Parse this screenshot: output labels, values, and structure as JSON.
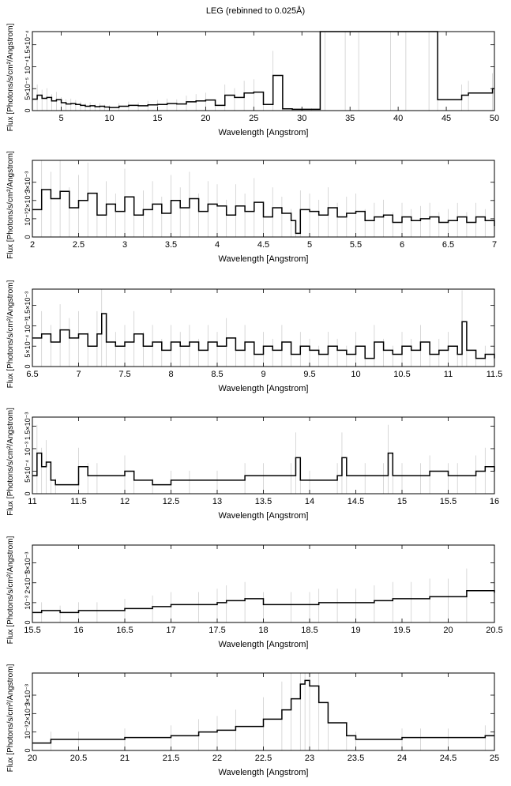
{
  "figure": {
    "title": "LEG (rebinned to 0.025Å)"
  },
  "chart_data": [
    {
      "type": "line",
      "title": "",
      "xlabel": "Wavelength [Angstrom]",
      "ylabel": "Flux [Photons/s/cm²/Angstrom]",
      "xlim": [
        2,
        50
      ],
      "ylim": [
        0,
        0.00018
      ],
      "xticks": [
        5,
        10,
        15,
        20,
        25,
        30,
        35,
        40,
        45,
        50
      ],
      "xtick_labels": [
        "5",
        "10",
        "15",
        "20",
        "25",
        "30",
        "35",
        "40",
        "45",
        "50"
      ],
      "yticks": [
        0,
        5e-05,
        0.0001,
        0.00015
      ],
      "ytick_labels": [
        "0",
        "5×10⁻⁵",
        "10⁻⁴",
        "1.5×10⁻⁴"
      ],
      "series": [
        {
          "x": [
            2,
            2.5,
            3,
            3.5,
            4,
            4.5,
            5,
            5.5,
            6,
            6.5,
            7,
            7.5,
            8,
            8.5,
            9,
            9.5,
            10,
            11,
            12,
            13,
            14,
            15,
            16,
            17,
            18,
            19,
            20,
            21,
            22,
            23,
            24,
            25,
            26,
            27,
            28,
            29,
            30,
            31,
            31.9,
            32.4,
            34.5,
            35.9,
            39.2,
            40.8,
            43.2,
            44.1,
            46.6,
            47.3,
            49.8
          ],
          "y": [
            2.6e-05,
            3.5e-05,
            2.8e-05,
            3e-05,
            2.2e-05,
            2.5e-05,
            1.8e-05,
            1.5e-05,
            1.6e-05,
            1.4e-05,
            1.2e-05,
            1e-05,
            1.1e-05,
            9e-06,
            1e-05,
            8e-06,
            7e-06,
            1e-05,
            1.2e-05,
            1.1e-05,
            1.3e-05,
            1.4e-05,
            1.6e-05,
            1.5e-05,
            2e-05,
            2.2e-05,
            2.4e-05,
            1.2e-05,
            3.5e-05,
            3e-05,
            4e-05,
            4.2e-05,
            1.4e-05,
            8e-05,
            4e-06,
            3e-06,
            3e-06,
            3e-06,
            0.00018,
            0.00018,
            0.00018,
            0.00018,
            0.00018,
            0.00018,
            0.00018,
            2.5e-05,
            3.5e-05,
            4e-05,
            5e-05
          ]
        }
      ]
    },
    {
      "type": "line",
      "title": "",
      "xlabel": "Wavelength [Angstrom]",
      "ylabel": "Flux [Photons/s/cm²/Angstrom]",
      "xlim": [
        2,
        7
      ],
      "ylim": [
        0,
        0.0042
      ],
      "xticks": [
        2,
        2.5,
        3,
        3.5,
        4,
        4.5,
        5,
        5.5,
        6,
        6.5,
        7
      ],
      "xtick_labels": [
        "2",
        "2.5",
        "3",
        "3.5",
        "4",
        "4.5",
        "5",
        "5.5",
        "6",
        "6.5",
        "7"
      ],
      "yticks": [
        0,
        0.001,
        0.002,
        0.003
      ],
      "ytick_labels": [
        "0",
        "10⁻³",
        "2×10⁻³",
        "3×10⁻³"
      ],
      "series": [
        {
          "x": [
            2,
            2.1,
            2.2,
            2.3,
            2.4,
            2.5,
            2.6,
            2.7,
            2.8,
            2.9,
            3,
            3.1,
            3.2,
            3.3,
            3.4,
            3.5,
            3.6,
            3.7,
            3.8,
            3.9,
            4,
            4.1,
            4.2,
            4.3,
            4.4,
            4.5,
            4.6,
            4.7,
            4.8,
            4.85,
            4.9,
            5,
            5.1,
            5.2,
            5.3,
            5.4,
            5.5,
            5.6,
            5.7,
            5.8,
            5.9,
            6,
            6.1,
            6.2,
            6.3,
            6.4,
            6.5,
            6.6,
            6.7,
            6.8,
            6.9,
            7
          ],
          "y": [
            0.0015,
            0.0026,
            0.0021,
            0.0025,
            0.0016,
            0.002,
            0.0024,
            0.0012,
            0.0018,
            0.0014,
            0.0022,
            0.0012,
            0.0015,
            0.0018,
            0.0013,
            0.002,
            0.0016,
            0.0021,
            0.0014,
            0.0018,
            0.0017,
            0.0012,
            0.0017,
            0.0014,
            0.0019,
            0.0011,
            0.0016,
            0.0013,
            0.0009,
            0.0002,
            0.0015,
            0.0014,
            0.0012,
            0.0016,
            0.0011,
            0.0013,
            0.0014,
            0.0009,
            0.0011,
            0.0012,
            0.0008,
            0.0011,
            0.0009,
            0.001,
            0.0011,
            0.0008,
            0.0009,
            0.0011,
            0.0008,
            0.0011,
            0.0009,
            0.0006
          ]
        }
      ]
    },
    {
      "type": "line",
      "title": "",
      "xlabel": "Wavelength [Angstrom]",
      "ylabel": "Flux [Photons/s/cm²/Angstrom]",
      "xlim": [
        6.5,
        11.5
      ],
      "ylim": [
        0,
        0.0019
      ],
      "xticks": [
        6.5,
        7,
        7.5,
        8,
        8.5,
        9,
        9.5,
        10,
        10.5,
        11,
        11.5
      ],
      "xtick_labels": [
        "6.5",
        "7",
        "7.5",
        "8",
        "8.5",
        "9",
        "9.5",
        "10",
        "10.5",
        "11",
        "11.5"
      ],
      "yticks": [
        0,
        0.0005,
        0.001,
        0.0015
      ],
      "ytick_labels": [
        "0",
        "5×10⁻⁴",
        "10⁻³",
        "1.5×10⁻³"
      ],
      "series": [
        {
          "x": [
            6.5,
            6.6,
            6.7,
            6.8,
            6.9,
            7,
            7.1,
            7.2,
            7.25,
            7.3,
            7.4,
            7.5,
            7.6,
            7.7,
            7.8,
            7.9,
            8,
            8.1,
            8.2,
            8.3,
            8.4,
            8.5,
            8.6,
            8.7,
            8.8,
            8.9,
            9,
            9.1,
            9.2,
            9.3,
            9.4,
            9.5,
            9.6,
            9.7,
            9.8,
            9.9,
            10,
            10.1,
            10.2,
            10.3,
            10.4,
            10.5,
            10.6,
            10.7,
            10.8,
            10.9,
            11,
            11.1,
            11.15,
            11.2,
            11.3,
            11.4,
            11.5
          ],
          "y": [
            0.0007,
            0.0008,
            0.0006,
            0.0009,
            0.0007,
            0.0008,
            0.0005,
            0.0008,
            0.0013,
            0.0006,
            0.0005,
            0.0006,
            0.0008,
            0.0005,
            0.0006,
            0.0004,
            0.0006,
            0.0005,
            0.0006,
            0.0004,
            0.0006,
            0.0005,
            0.0007,
            0.0004,
            0.0006,
            0.0003,
            0.0005,
            0.0004,
            0.0006,
            0.0003,
            0.0005,
            0.0004,
            0.0003,
            0.0005,
            0.0004,
            0.0003,
            0.0005,
            0.0002,
            0.0006,
            0.0004,
            0.0003,
            0.0005,
            0.0004,
            0.0006,
            0.0003,
            0.0004,
            0.0005,
            0.0003,
            0.0011,
            0.0004,
            0.0002,
            0.0003,
            0.0002
          ]
        }
      ]
    },
    {
      "type": "line",
      "title": "",
      "xlabel": "Wavelength [Angstrom]",
      "ylabel": "Flux [Photons/s/cm²/Angstrom]",
      "xlim": [
        11,
        16
      ],
      "ylim": [
        0,
        0.0017
      ],
      "xticks": [
        11,
        11.5,
        12,
        12.5,
        13,
        13.5,
        14,
        14.5,
        15,
        15.5,
        16
      ],
      "xtick_labels": [
        "11",
        "11.5",
        "12",
        "12.5",
        "13",
        "13.5",
        "14",
        "14.5",
        "15",
        "15.5",
        "16"
      ],
      "yticks": [
        0,
        0.0005,
        0.001,
        0.0015
      ],
      "ytick_labels": [
        "0",
        "5×10⁻⁴",
        "10⁻³",
        "1.5×10⁻³"
      ],
      "series": [
        {
          "x": [
            11,
            11.05,
            11.1,
            11.15,
            11.2,
            11.25,
            11.5,
            11.6,
            11.7,
            12,
            12.1,
            12.3,
            12.5,
            12.7,
            13,
            13.3,
            13.5,
            13.8,
            13.85,
            13.9,
            14,
            14.3,
            14.35,
            14.4,
            14.6,
            14.8,
            14.85,
            14.9,
            15,
            15.2,
            15.3,
            15.5,
            15.6,
            15.8,
            15.9,
            16
          ],
          "y": [
            0.0004,
            0.0009,
            0.0006,
            0.0007,
            0.0003,
            0.0002,
            0.0006,
            0.0004,
            0.0004,
            0.0005,
            0.0003,
            0.0002,
            0.0003,
            0.0003,
            0.0003,
            0.0004,
            0.0004,
            0.0004,
            0.0008,
            0.0003,
            0.0003,
            0.0004,
            0.0008,
            0.0004,
            0.0004,
            0.0004,
            0.0009,
            0.0004,
            0.0004,
            0.0004,
            0.0005,
            0.0004,
            0.0004,
            0.0005,
            0.0006,
            0.0005
          ]
        }
      ]
    },
    {
      "type": "line",
      "title": "",
      "xlabel": "Wavelength [Angstrom]",
      "ylabel": "Flux [Photons/s/cm²/Angstrom]",
      "xlim": [
        15.5,
        20.5
      ],
      "ylim": [
        0,
        0.0039
      ],
      "xticks": [
        15.5,
        16,
        16.5,
        17,
        17.5,
        18,
        18.5,
        19,
        19.5,
        20,
        20.5
      ],
      "xtick_labels": [
        "15.5",
        "16",
        "16.5",
        "17",
        "17.5",
        "18",
        "18.5",
        "19",
        "19.5",
        "20",
        "20.5"
      ],
      "yticks": [
        0,
        0.001,
        0.002,
        0.003
      ],
      "ytick_labels": [
        "0",
        "10⁻³",
        "2×10⁻³",
        "3×10⁻³"
      ],
      "series": [
        {
          "x": [
            15.5,
            15.6,
            15.8,
            16,
            16.2,
            16.5,
            16.8,
            17,
            17.3,
            17.5,
            17.6,
            17.8,
            18,
            18.3,
            18.5,
            18.6,
            18.8,
            19,
            19.2,
            19.4,
            19.6,
            19.8,
            20,
            20.2,
            20.5
          ],
          "y": [
            0.0005,
            0.0006,
            0.0005,
            0.0006,
            0.0006,
            0.0007,
            0.0008,
            0.0009,
            0.0009,
            0.001,
            0.0011,
            0.0012,
            0.0009,
            0.0009,
            0.0009,
            0.001,
            0.001,
            0.001,
            0.0011,
            0.0012,
            0.0012,
            0.0013,
            0.0013,
            0.0016,
            0.0015
          ]
        }
      ]
    },
    {
      "type": "line",
      "title": "",
      "xlabel": "Wavelength [Angstrom]",
      "ylabel": "Flux [Photons/s/cm²/Angstrom]",
      "xlim": [
        20,
        25
      ],
      "ylim": [
        0,
        0.0042
      ],
      "xticks": [
        20,
        20.5,
        21,
        21.5,
        22,
        22.5,
        23,
        23.5,
        24,
        24.5,
        25
      ],
      "xtick_labels": [
        "20",
        "20.5",
        "21",
        "21.5",
        "22",
        "22.5",
        "23",
        "23.5",
        "24",
        "24.5",
        "25"
      ],
      "yticks": [
        0,
        0.001,
        0.002,
        0.003
      ],
      "ytick_labels": [
        "0",
        "10⁻³",
        "2×10⁻³",
        "3×10⁻³"
      ],
      "series": [
        {
          "x": [
            20,
            20.2,
            20.5,
            21,
            21.5,
            21.8,
            22,
            22.2,
            22.5,
            22.7,
            22.8,
            22.9,
            22.95,
            23,
            23.1,
            23.2,
            23.4,
            23.5,
            24,
            24.2,
            24.5,
            24.9,
            25
          ],
          "y": [
            0.0004,
            0.0006,
            0.0006,
            0.0007,
            0.0008,
            0.001,
            0.0011,
            0.0013,
            0.0017,
            0.0022,
            0.0028,
            0.0036,
            0.0038,
            0.0035,
            0.0026,
            0.0015,
            0.0008,
            0.0006,
            0.0007,
            0.0007,
            0.0007,
            0.0008,
            0.0008
          ]
        }
      ]
    }
  ]
}
